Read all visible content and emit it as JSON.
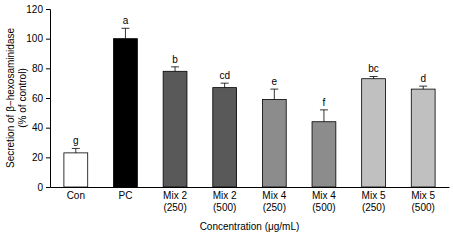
{
  "chart_data": {
    "type": "bar",
    "x_label": "Concentration (μg/mL)",
    "y_label": "Secretion of β−hexosaminidase (% of control)",
    "categories": [
      "Con",
      "PC",
      "Mix 2 (250)",
      "Mix 2 (500)",
      "Mix 4 (250)",
      "Mix 4 (500)",
      "Mix 5 (250)",
      "Mix 5 (500)"
    ],
    "values": [
      23,
      100,
      78,
      67,
      59,
      44,
      73,
      66
    ],
    "errors": [
      3,
      7,
      3,
      3,
      7,
      8,
      1.5,
      2
    ],
    "significance_letters": [
      "g",
      "a",
      "b",
      "cd",
      "e",
      "f",
      "bc",
      "d"
    ],
    "colors": [
      "#ffffff",
      "#000000",
      "#595959",
      "#595959",
      "#8c8c8c",
      "#8c8c8c",
      "#c0c0c0",
      "#c0c0c0"
    ],
    "ylim": [
      0,
      120
    ],
    "yticks": [
      0,
      20,
      40,
      60,
      80,
      100,
      120
    ],
    "grid": false
  }
}
